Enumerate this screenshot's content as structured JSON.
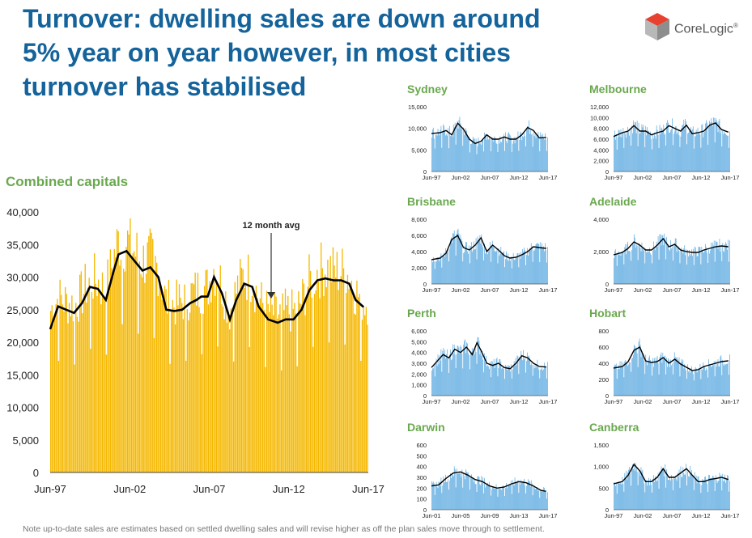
{
  "title_lines": [
    "Turnover: dwelling sales are down around",
    "5% year on year however, in most cities",
    "turnover has stabilised"
  ],
  "logo_text": "CoreLogic",
  "logo_trademark": "®",
  "colors": {
    "title": "#14639b",
    "panel_title": "#6aa84f",
    "bars_main": "#f5b800",
    "bars_small": "#5aa9e0",
    "line": "#000000"
  },
  "note": "Note up-to-date sales are estimates based on settled dwelling sales and will revise higher as off the plan sales move through to settlement.",
  "main_chart": {
    "title": "Combined capitals",
    "annotation": "12 month avg",
    "ylim": [
      0,
      40000
    ],
    "yticks": [
      "0",
      "5,000",
      "10,000",
      "15,000",
      "20,000",
      "25,000",
      "30,000",
      "35,000",
      "40,000"
    ],
    "xticks": [
      "Jun-97",
      "Jun-02",
      "Jun-07",
      "Jun-12",
      "Jun-17"
    ]
  },
  "chart_data": [
    {
      "type": "bar",
      "name": "Combined capitals",
      "x_range": [
        "Jun-97",
        "Jun-17"
      ],
      "ylim": [
        0,
        40000
      ],
      "avg_line_x": [
        1997.5,
        1998.0,
        1998.5,
        1999.0,
        1999.5,
        2000.0,
        2000.5,
        2001.0,
        2001.5,
        2001.8,
        2002.3,
        2002.8,
        2003.3,
        2003.8,
        2004.3,
        2004.8,
        2005.3,
        2005.8,
        2006.3,
        2006.7,
        2007.0,
        2007.4,
        2007.8,
        2008.3,
        2008.8,
        2009.2,
        2009.7,
        2010.2,
        2010.6,
        2011.2,
        2011.8,
        2012.3,
        2012.8,
        2013.3,
        2013.8,
        2014.3,
        2014.8,
        2015.3,
        2015.8,
        2016.3,
        2016.7,
        2017.2
      ],
      "avg_line_y": [
        22000,
        25500,
        25000,
        24500,
        26000,
        28500,
        28200,
        26500,
        31000,
        33500,
        34000,
        32500,
        31000,
        31500,
        30000,
        25000,
        24800,
        25000,
        26000,
        26500,
        27000,
        27000,
        30000,
        27500,
        23500,
        26500,
        29000,
        28500,
        25500,
        23500,
        23000,
        23500,
        23500,
        25000,
        28000,
        29500,
        29800,
        29500,
        29500,
        29000,
        26500,
        25400
      ],
      "bars_base_y": [
        24000,
        26000,
        25500,
        25000,
        26500,
        28800,
        28500,
        27000,
        32000,
        34500,
        34500,
        33000,
        31500,
        32000,
        30500,
        25500,
        25000,
        25500,
        26500,
        27000,
        27500,
        27500,
        30500,
        28000,
        24000,
        27000,
        29500,
        29000,
        26000,
        24000,
        23500,
        24000,
        24000,
        25500,
        28500,
        30000,
        30500,
        30000,
        30000,
        29500,
        27000,
        25500
      ]
    },
    {
      "type": "bar",
      "name": "Sydney",
      "ylim": [
        0,
        15000
      ],
      "yticks": [
        "0",
        "5,000",
        "10,000",
        "15,000"
      ],
      "xticks": [
        "Jun-97",
        "Jun-02",
        "Jun-07",
        "Jun-12",
        "Jun-17"
      ],
      "x_range": [
        1997.5,
        2017.5
      ],
      "avg_line_x": [
        1997.5,
        1999,
        2000,
        2001,
        2002,
        2003,
        2004,
        2005,
        2006,
        2007,
        2008,
        2009,
        2010,
        2011,
        2012,
        2013,
        2014,
        2015,
        2016,
        2017.2
      ],
      "avg_line_y": [
        8800,
        9000,
        9500,
        8500,
        11200,
        9800,
        7500,
        6500,
        7000,
        8500,
        7500,
        7500,
        8000,
        7500,
        7500,
        8500,
        10200,
        9500,
        7800,
        7900
      ]
    },
    {
      "type": "bar",
      "name": "Melbourne",
      "ylim": [
        0,
        12000
      ],
      "yticks": [
        "0",
        "2,000",
        "4,000",
        "6,000",
        "8,000",
        "10,000",
        "12,000"
      ],
      "xticks": [
        "Jun-97",
        "Jun-02",
        "Jun-07",
        "Jun-12",
        "Jun-17"
      ],
      "x_range": [
        1997.5,
        2017.5
      ],
      "avg_line_x": [
        1997.5,
        1999,
        2000,
        2001,
        2002,
        2003,
        2004,
        2005,
        2006,
        2007,
        2008,
        2009,
        2010,
        2011,
        2012,
        2013,
        2014,
        2015,
        2016,
        2017.2
      ],
      "avg_line_y": [
        6500,
        7200,
        7500,
        8500,
        7500,
        7500,
        6800,
        7200,
        7500,
        8500,
        8000,
        7500,
        8600,
        7000,
        7200,
        7500,
        8600,
        9000,
        7800,
        7300
      ]
    },
    {
      "type": "bar",
      "name": "Brisbane",
      "ylim": [
        0,
        8000
      ],
      "yticks": [
        "0",
        "2,000",
        "4,000",
        "6,000",
        "8,000"
      ],
      "xticks": [
        "Jun-97",
        "Jun-02",
        "Jun-07",
        "Jun-12",
        "Jun-17"
      ],
      "x_range": [
        1997.5,
        2017.5
      ],
      "avg_line_x": [
        1997.5,
        1999,
        2000,
        2001,
        2002,
        2003,
        2004,
        2005,
        2006,
        2007,
        2008,
        2009,
        2010,
        2011,
        2012,
        2013,
        2014,
        2015,
        2016,
        2017.2
      ],
      "avg_line_y": [
        3000,
        3200,
        3800,
        5500,
        6000,
        4500,
        4200,
        4800,
        5700,
        4000,
        4800,
        4200,
        3500,
        3200,
        3300,
        3600,
        4000,
        4600,
        4500,
        4400
      ]
    },
    {
      "type": "bar",
      "name": "Adelaide",
      "ylim": [
        0,
        4000
      ],
      "yticks": [
        "0",
        "2,000",
        "4,000"
      ],
      "xticks": [
        "Jun-97",
        "Jun-02",
        "Jun-07",
        "Jun-12",
        "Jun-17"
      ],
      "x_range": [
        1997.5,
        2017.5
      ],
      "avg_line_x": [
        1997.5,
        1999,
        2000,
        2001,
        2002,
        2003,
        2004,
        2005,
        2006,
        2007,
        2008,
        2009,
        2010,
        2011,
        2012,
        2013,
        2014,
        2015,
        2016,
        2017.2
      ],
      "avg_line_y": [
        1800,
        1950,
        2200,
        2600,
        2400,
        2100,
        2100,
        2400,
        2800,
        2300,
        2450,
        2100,
        2000,
        1950,
        1950,
        2100,
        2200,
        2300,
        2350,
        2300
      ]
    },
    {
      "type": "bar",
      "name": "Perth",
      "ylim": [
        0,
        6000
      ],
      "yticks": [
        "0",
        "1,000",
        "2,000",
        "3,000",
        "4,000",
        "5,000",
        "6,000"
      ],
      "xticks": [
        "Jun-97",
        "Jun-02",
        "Jun-07",
        "Jun-12",
        "Jun-17"
      ],
      "x_range": [
        1997.5,
        2017.5
      ],
      "avg_line_x": [
        1997.5,
        1998.5,
        1999.5,
        2000.5,
        2001.5,
        2002.5,
        2003.5,
        2004.5,
        2005.3,
        2006,
        2007,
        2008,
        2009,
        2010,
        2011,
        2012,
        2013,
        2014,
        2015,
        2016,
        2017.2
      ],
      "avg_line_y": [
        2600,
        3200,
        3800,
        3500,
        4300,
        4000,
        4500,
        3800,
        4900,
        4200,
        3000,
        2800,
        3000,
        2600,
        2500,
        3000,
        3700,
        3500,
        3000,
        2700,
        2650
      ]
    },
    {
      "type": "bar",
      "name": "Hobart",
      "ylim": [
        0,
        800
      ],
      "yticks": [
        "0",
        "200",
        "400",
        "600",
        "800"
      ],
      "xticks": [
        "Jun-97",
        "Jun-02",
        "Jun-07",
        "Jun-12",
        "Jun-17"
      ],
      "x_range": [
        1997.5,
        2017.5
      ],
      "avg_line_x": [
        1997.5,
        1999,
        2000,
        2001,
        2002,
        2003,
        2004,
        2005,
        2006,
        2007,
        2008,
        2009,
        2010,
        2011,
        2012,
        2013,
        2014,
        2015,
        2016,
        2017.2
      ],
      "avg_line_y": [
        340,
        360,
        420,
        560,
        600,
        430,
        410,
        420,
        470,
        400,
        450,
        390,
        350,
        310,
        320,
        360,
        380,
        400,
        420,
        430
      ]
    },
    {
      "type": "bar",
      "name": "Darwin",
      "ylim": [
        0,
        600
      ],
      "yticks": [
        "0",
        "100",
        "200",
        "300",
        "400",
        "500",
        "600"
      ],
      "xticks": [
        "Jun-01",
        "Jun-05",
        "Jun-09",
        "Jun-13",
        "Jun-17"
      ],
      "x_range": [
        2001.5,
        2017.5
      ],
      "avg_line_x": [
        2001.5,
        2002.5,
        2003.5,
        2004.5,
        2005.5,
        2006.5,
        2007.5,
        2008.5,
        2009.5,
        2010.5,
        2011.5,
        2012.5,
        2013.5,
        2014.5,
        2015.5,
        2016.5,
        2017.2
      ],
      "avg_line_y": [
        220,
        230,
        290,
        340,
        350,
        320,
        280,
        260,
        220,
        200,
        210,
        240,
        260,
        250,
        220,
        180,
        170
      ]
    },
    {
      "type": "bar",
      "name": "Canberra",
      "ylim": [
        0,
        1500
      ],
      "yticks": [
        "0",
        "500",
        "1,000",
        "1,500"
      ],
      "xticks": [
        "Jun-97",
        "Jun-02",
        "Jun-07",
        "Jun-12",
        "Jun-17"
      ],
      "x_range": [
        1997.5,
        2017.5
      ],
      "avg_line_x": [
        1997.5,
        1999,
        2000,
        2001,
        2002,
        2003,
        2004,
        2005,
        2006,
        2007,
        2008,
        2009,
        2010,
        2011,
        2012,
        2013,
        2014,
        2015,
        2016,
        2017.2
      ],
      "avg_line_y": [
        600,
        650,
        800,
        1050,
        900,
        650,
        650,
        750,
        950,
        750,
        750,
        850,
        950,
        800,
        650,
        650,
        700,
        720,
        750,
        700
      ]
    }
  ]
}
